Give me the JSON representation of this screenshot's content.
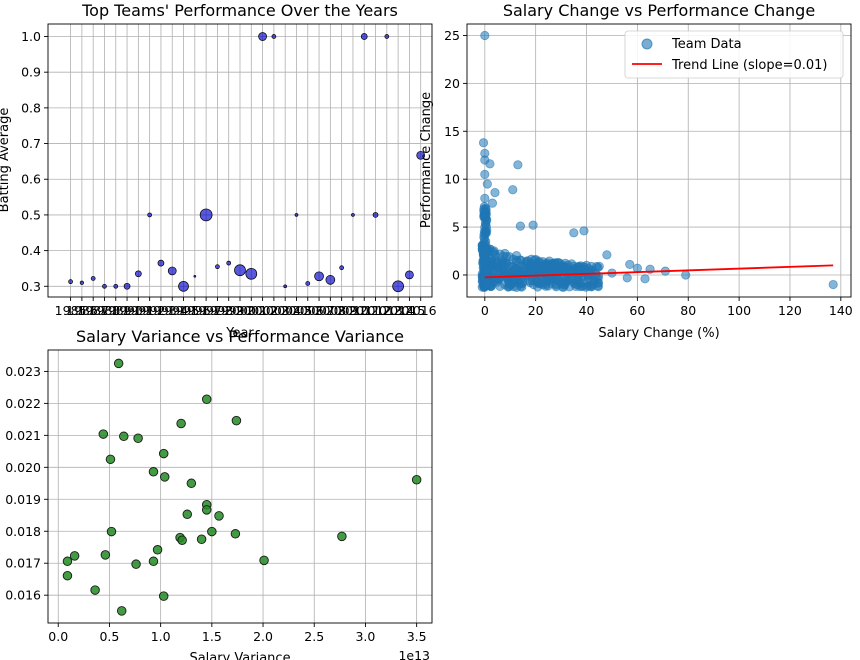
{
  "colors": {
    "bubble": "#0000cc",
    "scatter_blue": "#1f77b4",
    "trend_red": "#ff0000",
    "green": "#228b22",
    "grid": "#b0b0b0"
  },
  "chart_data": [
    {
      "id": "top-teams",
      "type": "scatter",
      "title": "Top Teams' Performance Over the Years",
      "xlabel": "Year",
      "ylabel": "Batting Average",
      "xlim": [
        1983,
        2017
      ],
      "ylim": [
        0.27,
        1.035
      ],
      "yticks": [
        0.3,
        0.4,
        0.5,
        0.6,
        0.7,
        0.8,
        0.9,
        1.0
      ],
      "ytick_labels": [
        "0.3",
        "0.4",
        "0.5",
        "0.6",
        "0.7",
        "0.8",
        "0.9",
        "1.0"
      ],
      "xticks": [
        1985,
        1986,
        1987,
        1988,
        1989,
        1990,
        1991,
        1992,
        1993,
        1994,
        1995,
        1996,
        1997,
        1998,
        1999,
        2000,
        2001,
        2002,
        2003,
        2004,
        2005,
        2006,
        2007,
        2008,
        2009,
        2010,
        2011,
        2012,
        2013,
        2014,
        2015,
        2016
      ],
      "xtick_labels": [
        "1985",
        "1986",
        "1987",
        "1988",
        "1989",
        "1990",
        "1991",
        "1992",
        "1993",
        "1994",
        "1995",
        "1996",
        "1997",
        "1998",
        "1999",
        "2000",
        "2001",
        "2002",
        "2003",
        "2004",
        "2005",
        "2006",
        "2007",
        "2008",
        "2009",
        "2010",
        "2011",
        "2012",
        "2013",
        "2014",
        "2015",
        "2016"
      ],
      "points": [
        {
          "x": 1985,
          "y": 0.313,
          "size": 4
        },
        {
          "x": 1986,
          "y": 0.31,
          "size": 3.5
        },
        {
          "x": 1987,
          "y": 0.322,
          "size": 4
        },
        {
          "x": 1988,
          "y": 0.3,
          "size": 4
        },
        {
          "x": 1989,
          "y": 0.3,
          "size": 4
        },
        {
          "x": 1990,
          "y": 0.3,
          "size": 6
        },
        {
          "x": 1991,
          "y": 0.335,
          "size": 6
        },
        {
          "x": 1992,
          "y": 0.5,
          "size": 4
        },
        {
          "x": 1993,
          "y": 0.365,
          "size": 6
        },
        {
          "x": 1994,
          "y": 0.343,
          "size": 8
        },
        {
          "x": 1995,
          "y": 0.3,
          "size": 10
        },
        {
          "x": 1996,
          "y": 0.328,
          "size": 2
        },
        {
          "x": 1997,
          "y": 0.5,
          "size": 12
        },
        {
          "x": 1998,
          "y": 0.355,
          "size": 4
        },
        {
          "x": 1999,
          "y": 0.365,
          "size": 4
        },
        {
          "x": 2000,
          "y": 0.345,
          "size": 11
        },
        {
          "x": 2001,
          "y": 0.335,
          "size": 11
        },
        {
          "x": 2002,
          "y": 1.0,
          "size": 8
        },
        {
          "x": 2003,
          "y": 1.0,
          "size": 4
        },
        {
          "x": 2004,
          "y": 0.3,
          "size": 3
        },
        {
          "x": 2005,
          "y": 0.5,
          "size": 3
        },
        {
          "x": 2006,
          "y": 0.308,
          "size": 4
        },
        {
          "x": 2007,
          "y": 0.328,
          "size": 9
        },
        {
          "x": 2008,
          "y": 0.318,
          "size": 9
        },
        {
          "x": 2009,
          "y": 0.352,
          "size": 4
        },
        {
          "x": 2010,
          "y": 0.5,
          "size": 3
        },
        {
          "x": 2011,
          "y": 1.0,
          "size": 6
        },
        {
          "x": 2012,
          "y": 0.5,
          "size": 5
        },
        {
          "x": 2013,
          "y": 1.0,
          "size": 4
        },
        {
          "x": 2014,
          "y": 0.3,
          "size": 11
        },
        {
          "x": 2015,
          "y": 0.332,
          "size": 8
        },
        {
          "x": 2016,
          "y": 0.667,
          "size": 8
        }
      ]
    },
    {
      "id": "salary-vs-performance",
      "type": "scatter",
      "title": "Salary Change vs Performance Change",
      "xlabel": "Salary Change (%)",
      "ylabel": "Performance Change",
      "xlim": [
        -7,
        144
      ],
      "ylim": [
        -2.3,
        26.2
      ],
      "xticks": [
        0,
        20,
        40,
        60,
        80,
        100,
        120,
        140
      ],
      "xtick_labels": [
        "0",
        "20",
        "40",
        "60",
        "80",
        "100",
        "120",
        "140"
      ],
      "yticks": [
        0,
        5,
        10,
        15,
        20,
        25
      ],
      "ytick_labels": [
        "0",
        "5",
        "10",
        "15",
        "20",
        "25"
      ],
      "legend": [
        "Team Data",
        "Trend Line (slope=0.01)"
      ],
      "legend_loc": "upper right",
      "trend_line": {
        "x": [
          0,
          137
        ],
        "y": [
          -0.25,
          1.0
        ]
      },
      "outliers": [
        {
          "x": 0,
          "y": 25.0
        },
        {
          "x": -0.5,
          "y": 13.8
        },
        {
          "x": 0,
          "y": 12.7
        },
        {
          "x": 0,
          "y": 12.0
        },
        {
          "x": 2,
          "y": 11.6
        },
        {
          "x": 13,
          "y": 11.5
        },
        {
          "x": 0,
          "y": 10.5
        },
        {
          "x": 11,
          "y": 8.9
        },
        {
          "x": 1,
          "y": 9.5
        },
        {
          "x": 4,
          "y": 8.6
        },
        {
          "x": 0,
          "y": 8.0
        },
        {
          "x": 3,
          "y": 7.5
        },
        {
          "x": 14,
          "y": 5.1
        },
        {
          "x": 19,
          "y": 5.2
        },
        {
          "x": 35,
          "y": 4.4
        },
        {
          "x": 39,
          "y": 4.6
        },
        {
          "x": 48,
          "y": 2.1
        },
        {
          "x": 57,
          "y": 1.1
        },
        {
          "x": 60,
          "y": 0.7
        },
        {
          "x": 65,
          "y": 0.6
        },
        {
          "x": 71,
          "y": 0.4
        },
        {
          "x": 79,
          "y": 0.0
        },
        {
          "x": 137,
          "y": -1.0
        },
        {
          "x": 63,
          "y": -0.4
        },
        {
          "x": 56,
          "y": -0.3
        },
        {
          "x": 45,
          "y": 0.9
        },
        {
          "x": 50,
          "y": 0.2
        }
      ],
      "bulk_region": {
        "x_range": [
          -1,
          45
        ],
        "y_range": [
          -1.3,
          3.5
        ],
        "count": 420
      }
    },
    {
      "id": "variance",
      "type": "scatter",
      "title": "Salary Variance vs Performance Variance",
      "xlabel": "Salary Variance",
      "ylabel": "",
      "x_offset_label": "1e13",
      "xlim": [
        -0.1,
        3.65
      ],
      "ylim": [
        0.01513,
        0.02367
      ],
      "xticks": [
        0.0,
        0.5,
        1.0,
        1.5,
        2.0,
        2.5,
        3.0,
        3.5
      ],
      "xtick_labels": [
        "0.0",
        "0.5",
        "1.0",
        "1.5",
        "2.0",
        "2.5",
        "3.0",
        "3.5"
      ],
      "yticks": [
        0.016,
        0.017,
        0.018,
        0.019,
        0.02,
        0.021,
        0.022,
        0.023
      ],
      "ytick_labels": [
        "0.016",
        "0.017",
        "0.018",
        "0.019",
        "0.020",
        "0.021",
        "0.022",
        "0.023"
      ],
      "points": [
        {
          "x": 0.59,
          "y": 0.02325
        },
        {
          "x": 1.45,
          "y": 0.02213
        },
        {
          "x": 1.74,
          "y": 0.02146
        },
        {
          "x": 1.2,
          "y": 0.02137
        },
        {
          "x": 0.44,
          "y": 0.02104
        },
        {
          "x": 0.64,
          "y": 0.02097
        },
        {
          "x": 0.78,
          "y": 0.02091
        },
        {
          "x": 1.03,
          "y": 0.02043
        },
        {
          "x": 0.51,
          "y": 0.02025
        },
        {
          "x": 0.93,
          "y": 0.01986
        },
        {
          "x": 1.04,
          "y": 0.0197
        },
        {
          "x": 1.3,
          "y": 0.0195
        },
        {
          "x": 3.5,
          "y": 0.01961
        },
        {
          "x": 1.45,
          "y": 0.01883
        },
        {
          "x": 1.45,
          "y": 0.01867
        },
        {
          "x": 1.57,
          "y": 0.01848
        },
        {
          "x": 1.26,
          "y": 0.01853
        },
        {
          "x": 0.52,
          "y": 0.01799
        },
        {
          "x": 1.5,
          "y": 0.01799
        },
        {
          "x": 1.73,
          "y": 0.01792
        },
        {
          "x": 2.77,
          "y": 0.01784
        },
        {
          "x": 1.19,
          "y": 0.0178
        },
        {
          "x": 1.21,
          "y": 0.01772
        },
        {
          "x": 1.4,
          "y": 0.01775
        },
        {
          "x": 0.97,
          "y": 0.01742
        },
        {
          "x": 0.46,
          "y": 0.01726
        },
        {
          "x": 0.16,
          "y": 0.01723
        },
        {
          "x": 0.09,
          "y": 0.01706
        },
        {
          "x": 0.93,
          "y": 0.01706
        },
        {
          "x": 0.76,
          "y": 0.01697
        },
        {
          "x": 2.01,
          "y": 0.01709
        },
        {
          "x": 0.09,
          "y": 0.01661
        },
        {
          "x": 0.36,
          "y": 0.01616
        },
        {
          "x": 1.03,
          "y": 0.01597
        },
        {
          "x": 0.62,
          "y": 0.01551
        }
      ]
    }
  ]
}
